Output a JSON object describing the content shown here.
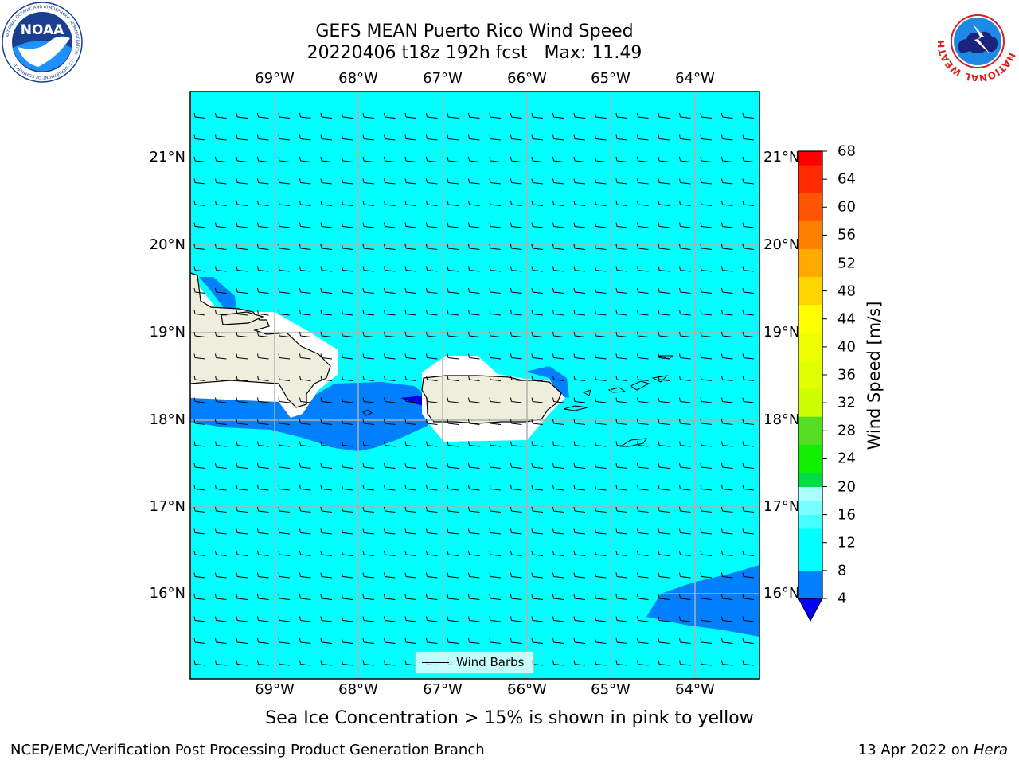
{
  "title": {
    "line1": "GEFS MEAN Puerto Rico Wind Speed",
    "line2": "20220406 t18z 192h fcst   Max: 11.49"
  },
  "logos": {
    "left": "noaa-logo",
    "right": "national-weather-service-logo",
    "noaa_text": "NOAA",
    "noaa_ring_text": "NATIONAL OCEANIC AND ATMOSPHERIC ADMINISTRATION",
    "noaa_ring_bottom": "U.S. DEPARTMENT OF COMMERCE",
    "nws_ring_text": "NATIONAL WEATHER SERVICE"
  },
  "map": {
    "longitude_labels": [
      "69°W",
      "68°W",
      "67°W",
      "66°W",
      "65°W",
      "64°W"
    ],
    "latitude_labels": [
      "21°N",
      "20°N",
      "19°N",
      "18°N",
      "17°N",
      "16°N"
    ],
    "ocean_color": "#00ffff",
    "land_color": "#eeeedc",
    "band_color": "#0080ff",
    "low_color": "#0000e0",
    "legend_label": "Wind Barbs",
    "regions": [
      "Hispaniola",
      "Puerto Rico",
      "Virgin Islands",
      "St. Croix"
    ]
  },
  "colorbar": {
    "title": "Wind Speed [m/s]",
    "ticks": [
      "68",
      "64",
      "60",
      "56",
      "52",
      "48",
      "44",
      "40",
      "36",
      "32",
      "28",
      "24",
      "20",
      "16",
      "12",
      "8",
      "4"
    ],
    "colors_top_to_bottom": [
      "#ff0000",
      "#ff2a00",
      "#ff5500",
      "#ff8000",
      "#ffaa00",
      "#ffd500",
      "#ffff00",
      "#f0ff00",
      "#e0ff00",
      "#ccff00",
      "#55dd22",
      "#11ee00",
      "#00dd44",
      "#44ff88",
      "#aaffff",
      "#77ffff",
      "#44ffff",
      "#00ffff",
      "#0080ff",
      "#0000ff"
    ]
  },
  "note": "Sea Ice Concentration > 15% is shown in pink to yellow",
  "footer": {
    "left": "NCEP/EMC/Verification Post Processing Product Generation Branch",
    "right_date": "13 Apr 2022 on",
    "right_host": "Hera"
  }
}
